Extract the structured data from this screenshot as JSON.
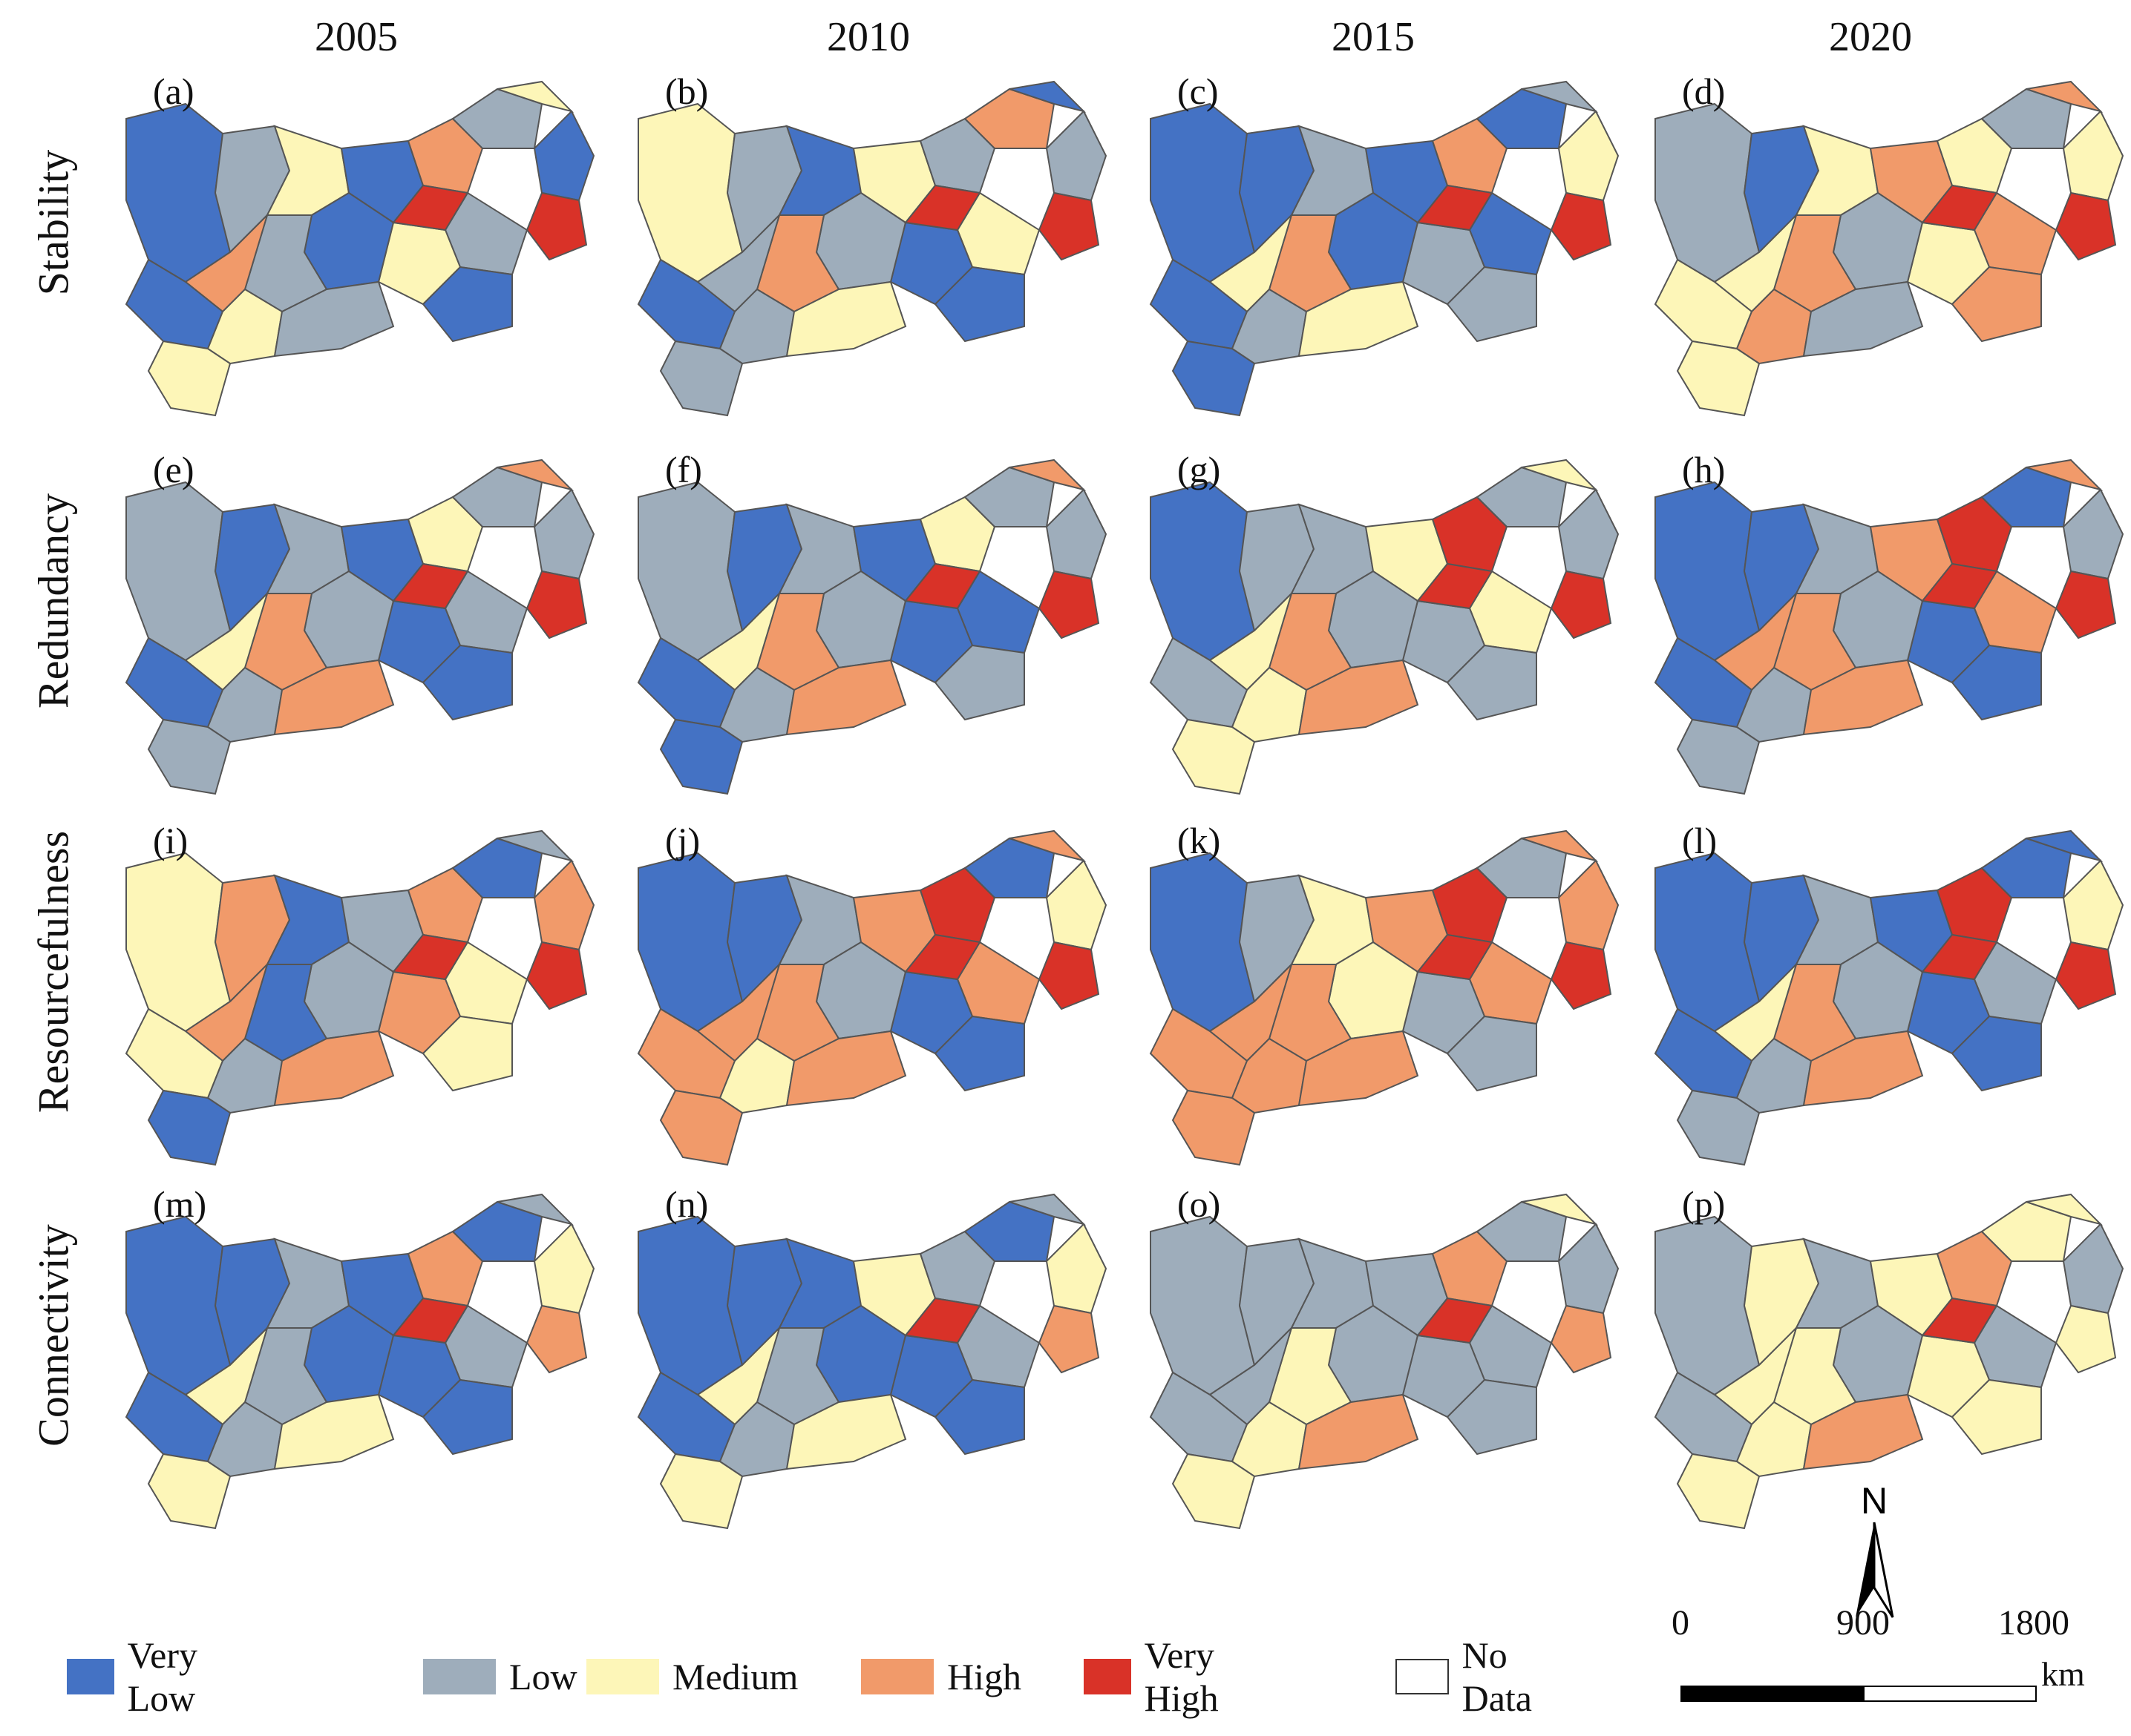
{
  "years": [
    "2005",
    "2010",
    "2015",
    "2020"
  ],
  "rows": [
    "Stability",
    "Redundancy",
    "Resourcefulness",
    "Connectivity"
  ],
  "panels": [
    {
      "label": "(a)",
      "row": "Stability",
      "year": "2005",
      "scheme": [
        0,
        1,
        2,
        0,
        3,
        1,
        2,
        0,
        4,
        1,
        2,
        0,
        1,
        3,
        0,
        2,
        1,
        4,
        0,
        2
      ]
    },
    {
      "label": "(b)",
      "row": "Stability",
      "year": "2010",
      "scheme": [
        2,
        1,
        0,
        2,
        1,
        3,
        0,
        1,
        4,
        2,
        0,
        1,
        3,
        1,
        0,
        1,
        2,
        4,
        0,
        1
      ]
    },
    {
      "label": "(c)",
      "row": "Stability",
      "year": "2015",
      "scheme": [
        0,
        0,
        1,
        0,
        3,
        0,
        1,
        2,
        4,
        0,
        1,
        0,
        3,
        2,
        0,
        1,
        2,
        4,
        1,
        0
      ]
    },
    {
      "label": "(d)",
      "row": "Stability",
      "year": "2020",
      "scheme": [
        1,
        0,
        2,
        3,
        2,
        1,
        3,
        2,
        4,
        3,
        2,
        1,
        3,
        2,
        2,
        3,
        1,
        4,
        3,
        2
      ]
    },
    {
      "label": "(e)",
      "row": "Redundancy",
      "year": "2005",
      "scheme": [
        1,
        0,
        1,
        0,
        2,
        1,
        3,
        1,
        4,
        1,
        0,
        1,
        3,
        2,
        0,
        1,
        3,
        4,
        0,
        1
      ]
    },
    {
      "label": "(f)",
      "row": "Redundancy",
      "year": "2010",
      "scheme": [
        1,
        0,
        1,
        0,
        2,
        1,
        3,
        1,
        4,
        0,
        0,
        1,
        3,
        2,
        0,
        1,
        3,
        4,
        1,
        0
      ]
    },
    {
      "label": "(g)",
      "row": "Redundancy",
      "year": "2015",
      "scheme": [
        0,
        1,
        1,
        2,
        4,
        1,
        2,
        1,
        4,
        2,
        1,
        1,
        3,
        2,
        1,
        2,
        3,
        4,
        1,
        2
      ]
    },
    {
      "label": "(h)",
      "row": "Redundancy",
      "year": "2020",
      "scheme": [
        0,
        0,
        1,
        3,
        4,
        0,
        3,
        1,
        4,
        3,
        0,
        1,
        3,
        3,
        0,
        1,
        3,
        4,
        0,
        1
      ]
    },
    {
      "label": "(i)",
      "row": "Resourcefulness",
      "year": "2005",
      "scheme": [
        2,
        3,
        0,
        1,
        3,
        0,
        1,
        3,
        4,
        2,
        3,
        1,
        0,
        3,
        2,
        1,
        3,
        4,
        2,
        0
      ]
    },
    {
      "label": "(j)",
      "row": "Resourcefulness",
      "year": "2010",
      "scheme": [
        0,
        0,
        1,
        3,
        4,
        0,
        3,
        2,
        4,
        3,
        0,
        1,
        3,
        3,
        3,
        2,
        3,
        4,
        0,
        3
      ]
    },
    {
      "label": "(k)",
      "row": "Resourcefulness",
      "year": "2015",
      "scheme": [
        0,
        1,
        2,
        3,
        4,
        1,
        3,
        3,
        4,
        3,
        1,
        2,
        3,
        3,
        3,
        3,
        3,
        4,
        1,
        3
      ]
    },
    {
      "label": "(l)",
      "row": "Resourcefulness",
      "year": "2020",
      "scheme": [
        0,
        0,
        1,
        0,
        4,
        0,
        0,
        2,
        4,
        1,
        0,
        1,
        3,
        2,
        0,
        1,
        3,
        4,
        0,
        1
      ]
    },
    {
      "label": "(m)",
      "row": "Connectivity",
      "year": "2005",
      "scheme": [
        0,
        0,
        1,
        0,
        3,
        0,
        1,
        2,
        3,
        1,
        0,
        0,
        1,
        2,
        0,
        1,
        2,
        4,
        0,
        2
      ]
    },
    {
      "label": "(n)",
      "row": "Connectivity",
      "year": "2010",
      "scheme": [
        0,
        0,
        0,
        2,
        1,
        0,
        1,
        2,
        3,
        1,
        0,
        0,
        1,
        2,
        0,
        1,
        2,
        4,
        0,
        2
      ]
    },
    {
      "label": "(o)",
      "row": "Connectivity",
      "year": "2015",
      "scheme": [
        1,
        1,
        1,
        1,
        3,
        1,
        2,
        1,
        3,
        1,
        1,
        1,
        2,
        1,
        1,
        2,
        3,
        4,
        1,
        2
      ]
    },
    {
      "label": "(p)",
      "row": "Connectivity",
      "year": "2020",
      "scheme": [
        1,
        2,
        1,
        2,
        3,
        2,
        2,
        1,
        2,
        1,
        2,
        1,
        2,
        2,
        1,
        2,
        3,
        4,
        2,
        2
      ]
    }
  ],
  "legend": [
    {
      "label": "Very Low",
      "color": "#4472c4"
    },
    {
      "label": "Low",
      "color": "#9eadbb"
    },
    {
      "label": "Medium",
      "color": "#fdf6b8"
    },
    {
      "label": "High",
      "color": "#f19a6a"
    },
    {
      "label": "Very High",
      "color": "#d93228"
    },
    {
      "label": "No Data",
      "color": "#ffffff"
    }
  ],
  "north_label": "N",
  "scale": {
    "ticks": [
      "0",
      "900",
      "1800"
    ],
    "unit": "km"
  }
}
